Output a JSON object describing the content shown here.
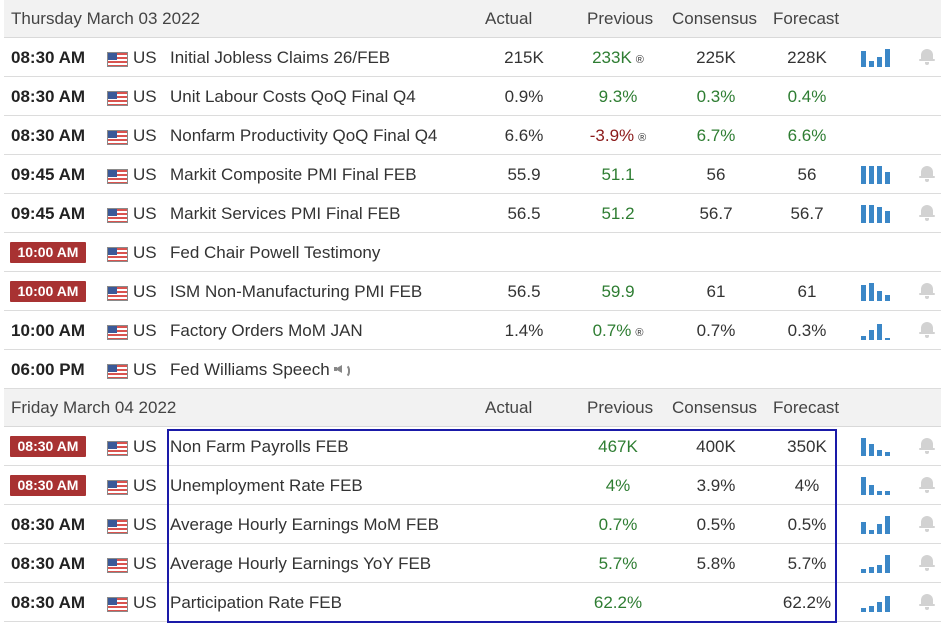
{
  "groups": [
    {
      "date": "Thursday March 03 2022",
      "headers": {
        "actual": "Actual",
        "previous": "Previous",
        "consensus": "Consensus",
        "forecast": "Forecast"
      },
      "rows": [
        {
          "time": "08:30 AM",
          "highlighted": false,
          "country": "US",
          "event": "Initial Jobless Claims 26/FEB",
          "actual": "215K",
          "previous": "233K",
          "previous_color": "green",
          "previous_revised": true,
          "consensus": "225K",
          "forecast": "228K",
          "chart": [
            8,
            3,
            5,
            9
          ],
          "alert": true
        },
        {
          "time": "08:30 AM",
          "highlighted": false,
          "country": "US",
          "event": "Unit Labour Costs QoQ Final Q4",
          "actual": "0.9%",
          "previous": "9.3%",
          "previous_color": "green",
          "previous_revised": false,
          "consensus": "0.3%",
          "consensus_color": "green",
          "forecast": "0.4%",
          "forecast_color": "green",
          "chart": null,
          "alert": false
        },
        {
          "time": "08:30 AM",
          "highlighted": false,
          "country": "US",
          "event": "Nonfarm Productivity QoQ Final Q4",
          "actual": "6.6%",
          "previous": "-3.9%",
          "previous_color": "red",
          "previous_revised": true,
          "consensus": "6.7%",
          "consensus_color": "green",
          "forecast": "6.6%",
          "forecast_color": "green",
          "chart": null,
          "alert": false
        },
        {
          "time": "09:45 AM",
          "highlighted": false,
          "country": "US",
          "event": "Markit Composite PMI Final FEB",
          "actual": "55.9",
          "previous": "51.1",
          "previous_color": "green",
          "previous_revised": false,
          "consensus": "56",
          "forecast": "56",
          "chart": [
            9,
            9,
            9,
            6
          ],
          "alert": true
        },
        {
          "time": "09:45 AM",
          "highlighted": false,
          "country": "US",
          "event": "Markit Services PMI Final FEB",
          "actual": "56.5",
          "previous": "51.2",
          "previous_color": "green",
          "previous_revised": false,
          "consensus": "56.7",
          "forecast": "56.7",
          "chart": [
            9,
            9,
            8,
            6
          ],
          "alert": true
        },
        {
          "time": "10:00 AM",
          "highlighted": true,
          "country": "US",
          "event": "Fed Chair Powell Testimony",
          "actual": "",
          "previous": "",
          "previous_revised": false,
          "consensus": "",
          "forecast": "",
          "chart": null,
          "alert": false
        },
        {
          "time": "10:00 AM",
          "highlighted": true,
          "country": "US",
          "event": "ISM Non-Manufacturing PMI FEB",
          "actual": "56.5",
          "previous": "59.9",
          "previous_color": "green",
          "previous_revised": false,
          "consensus": "61",
          "forecast": "61",
          "chart": [
            8,
            9,
            5,
            3
          ],
          "alert": true
        },
        {
          "time": "10:00 AM",
          "highlighted": false,
          "country": "US",
          "event": "Factory Orders MoM JAN",
          "actual": "1.4%",
          "previous": "0.7%",
          "previous_color": "green",
          "previous_revised": true,
          "consensus": "0.7%",
          "forecast": "0.3%",
          "chart": [
            2,
            5,
            8,
            1
          ],
          "alert": true
        },
        {
          "time": "06:00 PM",
          "highlighted": false,
          "country": "US",
          "event": "Fed Williams Speech",
          "speaker_icon": "speaker-icon",
          "actual": "",
          "previous": "",
          "previous_revised": false,
          "consensus": "",
          "forecast": "",
          "chart": null,
          "alert": false
        }
      ]
    },
    {
      "date": "Friday March 04 2022",
      "headers": {
        "actual": "Actual",
        "previous": "Previous",
        "consensus": "Consensus",
        "forecast": "Forecast"
      },
      "rows": [
        {
          "time": "08:30 AM",
          "highlighted": true,
          "country": "US",
          "event": "Non Farm Payrolls FEB",
          "actual": "",
          "previous": "467K",
          "previous_color": "green",
          "previous_revised": false,
          "consensus": "400K",
          "forecast": "350K",
          "chart": [
            9,
            6,
            3,
            2
          ],
          "alert": true
        },
        {
          "time": "08:30 AM",
          "highlighted": true,
          "country": "US",
          "event": "Unemployment Rate FEB",
          "actual": "",
          "previous": "4%",
          "previous_color": "green",
          "previous_revised": false,
          "consensus": "3.9%",
          "forecast": "4%",
          "chart": [
            9,
            5,
            2,
            2
          ],
          "alert": true
        },
        {
          "time": "08:30 AM",
          "highlighted": false,
          "country": "US",
          "event": "Average Hourly Earnings MoM FEB",
          "actual": "",
          "previous": "0.7%",
          "previous_color": "green",
          "previous_revised": false,
          "consensus": "0.5%",
          "forecast": "0.5%",
          "chart": [
            6,
            2,
            5,
            9
          ],
          "alert": true
        },
        {
          "time": "08:30 AM",
          "highlighted": false,
          "country": "US",
          "event": "Average Hourly Earnings YoY FEB",
          "actual": "",
          "previous": "5.7%",
          "previous_color": "green",
          "previous_revised": false,
          "consensus": "5.8%",
          "forecast": "5.7%",
          "chart": [
            2,
            3,
            4,
            9
          ],
          "alert": true
        },
        {
          "time": "08:30 AM",
          "highlighted": false,
          "country": "US",
          "event": "Participation Rate FEB",
          "actual": "",
          "previous": "62.2%",
          "previous_color": "green",
          "previous_revised": false,
          "consensus": "",
          "forecast": "62.2%",
          "chart": [
            2,
            3,
            5,
            8
          ],
          "alert": true
        }
      ]
    }
  ],
  "revised_symbol": "®",
  "colors": {
    "green": "#2e7d32",
    "red": "#8b1a1a",
    "badge": "#a83232",
    "bars": "#3b87c7",
    "selection_box": "#1a1aa8"
  }
}
